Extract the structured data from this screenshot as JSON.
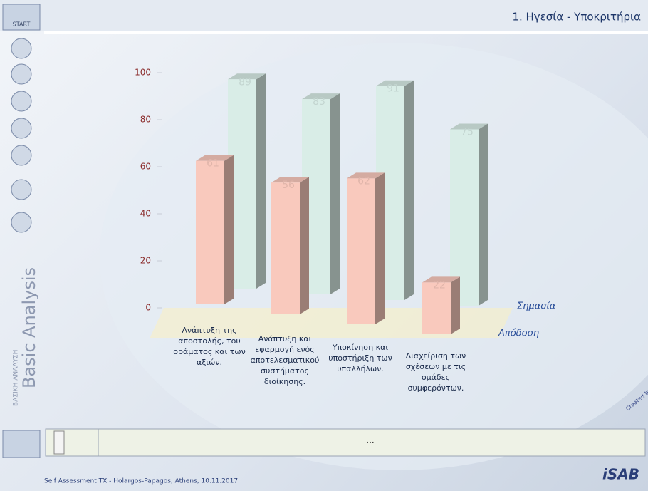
{
  "ui": {
    "start": "START",
    "header_title": "1. Ηγεσία - Υποκριτήρια",
    "side_title": "Basic Analysis",
    "side_subtitle": "ΒΑΣΙΚΗ ΑΝΑΛΥΣΗ",
    "status_text": "...",
    "credit": "Created by SABB",
    "logo": "iSAB",
    "footer": "Self Assessment TX - Holargos-Papagos, Athens, 10.11.2017"
  },
  "chart_data": {
    "type": "bar3d",
    "categories": [
      "Ανάπτυξη της αποστολής, του οράματος και των αξιών.",
      "Ανάπτυξη και εφαρμογή ενός αποτελεσματικού συστήματος διοίκησης.",
      "Υποκίνηση και υποστήριξη των υπαλλήλων.",
      "Διαχείριση των σχέσεων με τις ομάδες συμφερόντων."
    ],
    "series": [
      {
        "name": "Σημασία",
        "color": "#d9ede7",
        "values": [
          89,
          83,
          91,
          75
        ]
      },
      {
        "name": "Απόδοση",
        "color": "#f9c9bd",
        "values": [
          61,
          56,
          62,
          22
        ]
      }
    ],
    "ylim": [
      0,
      100
    ],
    "yticks": [
      0,
      20,
      40,
      60,
      80,
      100
    ]
  }
}
